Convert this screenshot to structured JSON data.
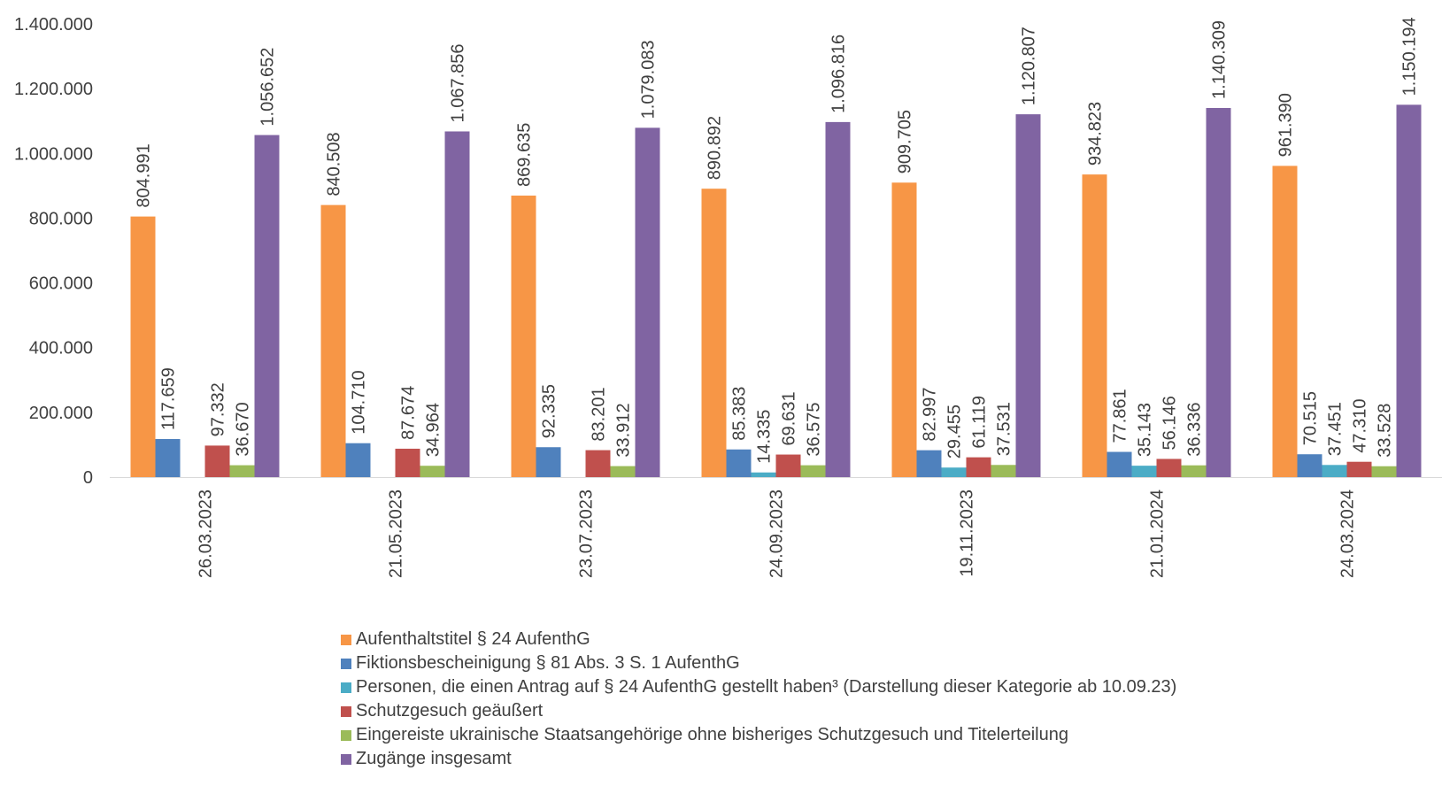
{
  "chart_data": {
    "type": "bar",
    "title": "",
    "xlabel": "",
    "ylabel": "",
    "ylim": [
      0,
      1400000
    ],
    "yticks": [
      "0",
      "200.000",
      "400.000",
      "600.000",
      "800.000",
      "1.000.000",
      "1.200.000",
      "1.400.000"
    ],
    "grid": false,
    "legend_position": "bottom",
    "categories": [
      "26.03.2023",
      "21.05.2023",
      "23.07.2023",
      "24.09.2023",
      "19.11.2023",
      "21.01.2024",
      "24.03.2024"
    ],
    "series": [
      {
        "name": "Aufenthaltstitel § 24 AufenthG",
        "color": "#F79646",
        "values": [
          804991,
          840508,
          869635,
          890892,
          909705,
          934823,
          961390
        ],
        "labels": [
          "804.991",
          "840.508",
          "869.635",
          "890.892",
          "909.705",
          "934.823",
          "961.390"
        ]
      },
      {
        "name": "Fiktionsbescheinigung § 81 Abs. 3 S. 1 AufenthG",
        "color": "#4F81BD",
        "values": [
          117659,
          104710,
          92335,
          85383,
          82997,
          77861,
          70515
        ],
        "labels": [
          "117.659",
          "104.710",
          "92.335",
          "85.383",
          "82.997",
          "77.861",
          "70.515"
        ]
      },
      {
        "name": "Personen, die einen Antrag auf § 24 AufenthG gestellt haben³ (Darstellung dieser Kategorie ab 10.09.23)",
        "color": "#4BACC6",
        "values": [
          null,
          null,
          null,
          14335,
          29455,
          35143,
          37451
        ],
        "labels": [
          null,
          null,
          null,
          "14.335",
          "29.455",
          "35.143",
          "37.451"
        ]
      },
      {
        "name": "Schutzgesuch geäußert",
        "color": "#C0504D",
        "values": [
          97332,
          87674,
          83201,
          69631,
          61119,
          56146,
          47310
        ],
        "labels": [
          "97.332",
          "87.674",
          "83.201",
          "69.631",
          "61.119",
          "56.146",
          "47.310"
        ]
      },
      {
        "name": "Eingereiste ukrainische Staatsangehörige ohne bisheriges Schutzgesuch und Titelerteilung",
        "color": "#9BBB59",
        "values": [
          36670,
          34964,
          33912,
          36575,
          37531,
          36336,
          33528
        ],
        "labels": [
          "36.670",
          "34.964",
          "33.912",
          "36.575",
          "37.531",
          "36.336",
          "33.528"
        ]
      },
      {
        "name": "Zugänge insgesamt",
        "color": "#8064A2",
        "values": [
          1056652,
          1067856,
          1079083,
          1096816,
          1120807,
          1140309,
          1150194
        ],
        "labels": [
          "1.056.652",
          "1.067.856",
          "1.079.083",
          "1.096.816",
          "1.120.807",
          "1.140.309",
          "1.150.194"
        ]
      }
    ]
  }
}
